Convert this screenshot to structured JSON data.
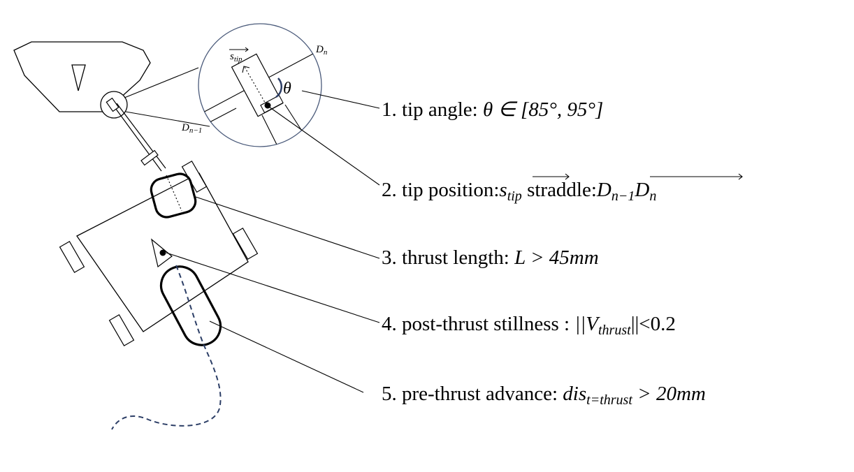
{
  "criteria": [
    {
      "number": "1.",
      "text": "tip angle: ",
      "math": "θ ∈ [85°, 95°]"
    },
    {
      "number": "2.",
      "text": "tip position:",
      "math_vec1": "s",
      "math_vec1_sub": "tip",
      "text2": " straddle:",
      "math_vec2": "D",
      "math_vec2_sub1": "n−1",
      "math_vec2_mid": "D",
      "math_vec2_sub2": "n"
    },
    {
      "number": "3.",
      "text": "thrust length: ",
      "math": "L > 45mm"
    },
    {
      "number": "4.",
      "text": "post-thrust stillness : ",
      "math_pre": "||V",
      "math_sub": "thrust",
      "math_post": "||<0.2"
    },
    {
      "number": "5.",
      "text": "pre-thrust advance: ",
      "math_pre": "dis",
      "math_sub": "t=thrust",
      "math_post": " > 20mm"
    }
  ],
  "inset": {
    "vector_label": "s",
    "vector_sub": "tip",
    "angle_symbol": "θ",
    "dn_label": "D",
    "dn_sub": "n",
    "dn1_label": "D",
    "dn1_sub": "n−1"
  },
  "colors": {
    "line": "#000000",
    "inset_circle": "#4a5a7a",
    "trajectory": "#2c3e66",
    "angle_arc": "#2c3e66"
  }
}
